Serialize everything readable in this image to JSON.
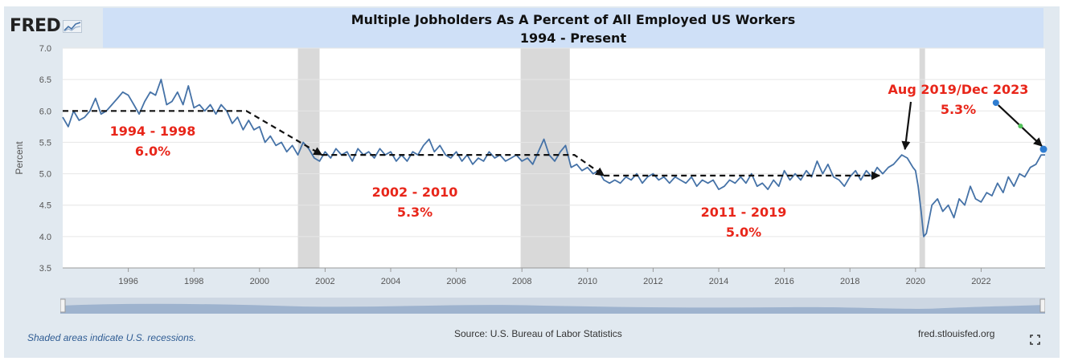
{
  "header": {
    "logo_text": "FRED",
    "title_line1": "Multiple Jobholders As A Percent of All Employed US Workers",
    "title_line2": "1994 - Present"
  },
  "footer": {
    "recession_note": "Shaded areas indicate U.S. recessions.",
    "source": "Source: U.S. Bureau of Labor Statistics",
    "site": "fred.stlouisfed.org"
  },
  "colors": {
    "line": "#4572a7",
    "recession": "#d9d9d9",
    "annotation": "#e8261a",
    "panel": "#e1e9f0",
    "title_bg": "#cfe0f7"
  },
  "chart_data": {
    "type": "line",
    "title": "Multiple Jobholders As A Percent of All Employed US Workers",
    "subtitle": "1994 - Present",
    "xlabel": "",
    "ylabel": "Percent",
    "xlim": [
      1994.0,
      2023.95
    ],
    "ylim": [
      3.5,
      7.0
    ],
    "yticks": [
      3.5,
      4.0,
      4.5,
      5.0,
      5.5,
      6.0,
      6.5,
      7.0
    ],
    "ytick_labels": [
      "3.5",
      "4.0",
      "4.5",
      "5.0",
      "5.5",
      "6.0",
      "6.5",
      "7.0"
    ],
    "xticks": [
      1996,
      1998,
      2000,
      2002,
      2004,
      2006,
      2008,
      2010,
      2012,
      2014,
      2016,
      2018,
      2020,
      2022
    ],
    "xtick_labels": [
      "1996",
      "1998",
      "2000",
      "2002",
      "2004",
      "2006",
      "2008",
      "2010",
      "2012",
      "2014",
      "2016",
      "2018",
      "2020",
      "2022"
    ],
    "grid": true,
    "legend": "none",
    "recessions": [
      [
        2001.17,
        2001.83
      ],
      [
        2007.96,
        2009.46
      ],
      [
        2020.12,
        2020.29
      ]
    ],
    "series": [
      {
        "points": [
          [
            1994.0,
            5.9
          ],
          [
            1994.17,
            5.75
          ],
          [
            1994.33,
            6.0
          ],
          [
            1994.5,
            5.85
          ],
          [
            1994.67,
            5.9
          ],
          [
            1994.83,
            6.0
          ],
          [
            1995.0,
            6.2
          ],
          [
            1995.17,
            5.95
          ],
          [
            1995.33,
            6.0
          ],
          [
            1995.5,
            6.1
          ],
          [
            1995.67,
            6.2
          ],
          [
            1995.83,
            6.3
          ],
          [
            1996.0,
            6.25
          ],
          [
            1996.17,
            6.1
          ],
          [
            1996.33,
            5.95
          ],
          [
            1996.5,
            6.15
          ],
          [
            1996.67,
            6.3
          ],
          [
            1996.83,
            6.25
          ],
          [
            1997.0,
            6.5
          ],
          [
            1997.17,
            6.1
          ],
          [
            1997.33,
            6.15
          ],
          [
            1997.5,
            6.3
          ],
          [
            1997.67,
            6.1
          ],
          [
            1997.83,
            6.4
          ],
          [
            1998.0,
            6.05
          ],
          [
            1998.17,
            6.1
          ],
          [
            1998.33,
            6.0
          ],
          [
            1998.5,
            6.1
          ],
          [
            1998.67,
            5.95
          ],
          [
            1998.83,
            6.1
          ],
          [
            1999.0,
            6.0
          ],
          [
            1999.17,
            5.8
          ],
          [
            1999.33,
            5.9
          ],
          [
            1999.5,
            5.7
          ],
          [
            1999.67,
            5.85
          ],
          [
            1999.83,
            5.7
          ],
          [
            2000.0,
            5.75
          ],
          [
            2000.17,
            5.5
          ],
          [
            2000.33,
            5.6
          ],
          [
            2000.5,
            5.45
          ],
          [
            2000.67,
            5.5
          ],
          [
            2000.83,
            5.35
          ],
          [
            2001.0,
            5.45
          ],
          [
            2001.17,
            5.3
          ],
          [
            2001.33,
            5.5
          ],
          [
            2001.5,
            5.4
          ],
          [
            2001.67,
            5.25
          ],
          [
            2001.83,
            5.2
          ],
          [
            2002.0,
            5.35
          ],
          [
            2002.17,
            5.25
          ],
          [
            2002.33,
            5.4
          ],
          [
            2002.5,
            5.3
          ],
          [
            2002.67,
            5.35
          ],
          [
            2002.83,
            5.2
          ],
          [
            2003.0,
            5.4
          ],
          [
            2003.17,
            5.3
          ],
          [
            2003.33,
            5.35
          ],
          [
            2003.5,
            5.25
          ],
          [
            2003.67,
            5.4
          ],
          [
            2003.83,
            5.3
          ],
          [
            2004.0,
            5.35
          ],
          [
            2004.17,
            5.2
          ],
          [
            2004.33,
            5.3
          ],
          [
            2004.5,
            5.2
          ],
          [
            2004.67,
            5.35
          ],
          [
            2004.83,
            5.3
          ],
          [
            2005.0,
            5.45
          ],
          [
            2005.17,
            5.55
          ],
          [
            2005.33,
            5.35
          ],
          [
            2005.5,
            5.45
          ],
          [
            2005.67,
            5.3
          ],
          [
            2005.83,
            5.25
          ],
          [
            2006.0,
            5.35
          ],
          [
            2006.17,
            5.2
          ],
          [
            2006.33,
            5.3
          ],
          [
            2006.5,
            5.15
          ],
          [
            2006.67,
            5.25
          ],
          [
            2006.83,
            5.2
          ],
          [
            2007.0,
            5.35
          ],
          [
            2007.17,
            5.25
          ],
          [
            2007.33,
            5.3
          ],
          [
            2007.5,
            5.2
          ],
          [
            2007.67,
            5.25
          ],
          [
            2007.83,
            5.3
          ],
          [
            2008.0,
            5.2
          ],
          [
            2008.17,
            5.25
          ],
          [
            2008.33,
            5.15
          ],
          [
            2008.5,
            5.35
          ],
          [
            2008.67,
            5.55
          ],
          [
            2008.83,
            5.3
          ],
          [
            2009.0,
            5.2
          ],
          [
            2009.17,
            5.35
          ],
          [
            2009.33,
            5.45
          ],
          [
            2009.5,
            5.1
          ],
          [
            2009.67,
            5.15
          ],
          [
            2009.83,
            5.05
          ],
          [
            2010.0,
            5.1
          ],
          [
            2010.17,
            5.0
          ],
          [
            2010.33,
            5.05
          ],
          [
            2010.5,
            4.9
          ],
          [
            2010.67,
            4.85
          ],
          [
            2010.83,
            4.9
          ],
          [
            2011.0,
            4.85
          ],
          [
            2011.17,
            4.95
          ],
          [
            2011.33,
            4.9
          ],
          [
            2011.5,
            5.0
          ],
          [
            2011.67,
            4.85
          ],
          [
            2011.83,
            4.95
          ],
          [
            2012.0,
            5.0
          ],
          [
            2012.17,
            4.9
          ],
          [
            2012.33,
            4.95
          ],
          [
            2012.5,
            4.85
          ],
          [
            2012.67,
            4.95
          ],
          [
            2012.83,
            4.9
          ],
          [
            2013.0,
            4.85
          ],
          [
            2013.17,
            4.95
          ],
          [
            2013.33,
            4.8
          ],
          [
            2013.5,
            4.9
          ],
          [
            2013.67,
            4.85
          ],
          [
            2013.83,
            4.9
          ],
          [
            2014.0,
            4.75
          ],
          [
            2014.17,
            4.8
          ],
          [
            2014.33,
            4.9
          ],
          [
            2014.5,
            4.85
          ],
          [
            2014.67,
            4.95
          ],
          [
            2014.83,
            4.85
          ],
          [
            2015.0,
            5.0
          ],
          [
            2015.17,
            4.8
          ],
          [
            2015.33,
            4.85
          ],
          [
            2015.5,
            4.75
          ],
          [
            2015.67,
            4.9
          ],
          [
            2015.83,
            4.8
          ],
          [
            2016.0,
            5.05
          ],
          [
            2016.17,
            4.9
          ],
          [
            2016.33,
            5.0
          ],
          [
            2016.5,
            4.9
          ],
          [
            2016.67,
            5.05
          ],
          [
            2016.83,
            4.95
          ],
          [
            2017.0,
            5.2
          ],
          [
            2017.17,
            5.0
          ],
          [
            2017.33,
            5.15
          ],
          [
            2017.5,
            4.95
          ],
          [
            2017.67,
            4.9
          ],
          [
            2017.83,
            4.8
          ],
          [
            2018.0,
            4.95
          ],
          [
            2018.17,
            5.05
          ],
          [
            2018.33,
            4.9
          ],
          [
            2018.5,
            5.05
          ],
          [
            2018.67,
            4.95
          ],
          [
            2018.83,
            5.1
          ],
          [
            2019.0,
            5.0
          ],
          [
            2019.17,
            5.1
          ],
          [
            2019.33,
            5.15
          ],
          [
            2019.58,
            5.3
          ],
          [
            2019.75,
            5.25
          ],
          [
            2019.92,
            5.1
          ],
          [
            2020.0,
            5.05
          ],
          [
            2020.08,
            4.8
          ],
          [
            2020.17,
            4.4
          ],
          [
            2020.25,
            4.0
          ],
          [
            2020.33,
            4.05
          ],
          [
            2020.5,
            4.5
          ],
          [
            2020.67,
            4.6
          ],
          [
            2020.83,
            4.4
          ],
          [
            2021.0,
            4.5
          ],
          [
            2021.17,
            4.3
          ],
          [
            2021.33,
            4.6
          ],
          [
            2021.5,
            4.5
          ],
          [
            2021.67,
            4.8
          ],
          [
            2021.83,
            4.6
          ],
          [
            2022.0,
            4.55
          ],
          [
            2022.17,
            4.7
          ],
          [
            2022.33,
            4.65
          ],
          [
            2022.5,
            4.85
          ],
          [
            2022.67,
            4.7
          ],
          [
            2022.83,
            4.95
          ],
          [
            2023.0,
            4.8
          ],
          [
            2023.17,
            5.0
          ],
          [
            2023.33,
            4.95
          ],
          [
            2023.5,
            5.1
          ],
          [
            2023.67,
            5.15
          ],
          [
            2023.83,
            5.3
          ],
          [
            2023.95,
            5.3
          ]
        ]
      }
    ],
    "trend_segments": [
      {
        "points": [
          [
            1994.0,
            6.0
          ],
          [
            1999.6,
            6.0
          ],
          [
            2001.9,
            5.3
          ]
        ],
        "label_range": "1994 - 1998",
        "label_value": "6.0%"
      },
      {
        "points": [
          [
            2001.9,
            5.3
          ],
          [
            2009.6,
            5.3
          ],
          [
            2010.5,
            4.97
          ]
        ],
        "label_range": "2002 - 2010",
        "label_value": "5.3%"
      },
      {
        "points": [
          [
            2010.5,
            4.97
          ],
          [
            2018.9,
            4.97
          ]
        ],
        "label_range": "2011 - 2019",
        "label_value": "5.0%"
      }
    ],
    "callout": {
      "label_line1": "Aug 2019/Dec 2023",
      "label_line2": "5.3%",
      "target_2019": [
        2019.58,
        5.3
      ],
      "marker_start": [
        2022.45,
        6.13
      ],
      "marker_mid": [
        2023.2,
        5.76
      ],
      "marker_end": [
        2023.95,
        5.39
      ]
    }
  }
}
